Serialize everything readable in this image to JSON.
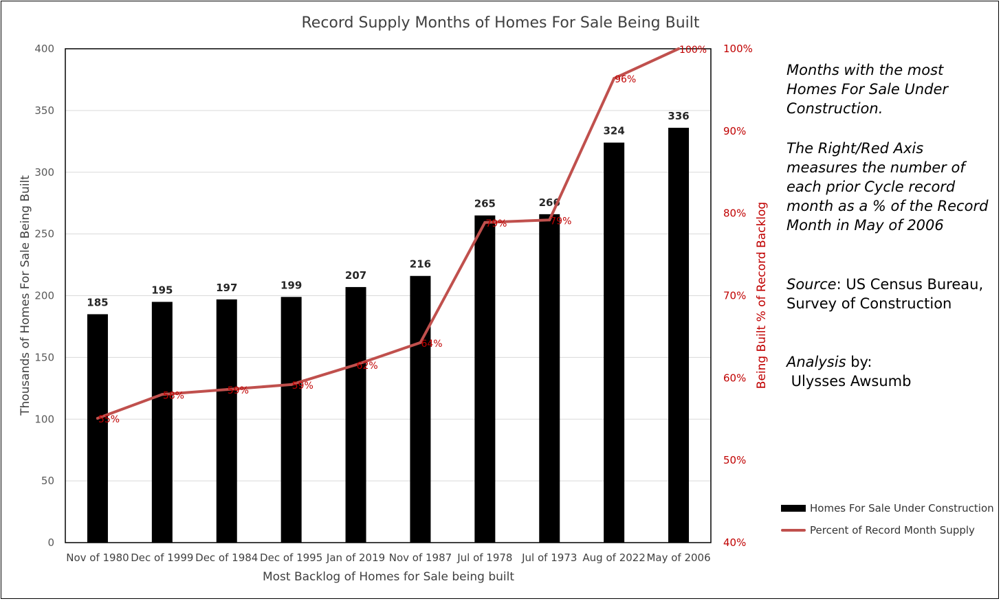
{
  "chart_data": {
    "type": "bar",
    "title": "Record Supply Months of Homes For Sale Being Built",
    "xlabel": "Most Backlog of Homes for Sale being built",
    "ylabel": "Thousands of Homes For Sale Being Built",
    "y2label": "Being Built %  of Record Backlog",
    "categories": [
      "Nov of 1980",
      "Dec of 1999",
      "Dec of 1984",
      "Dec of 1995",
      "Jan of 2019",
      "Nov of 1987",
      "Jul of 1978",
      "Jul of 1973",
      "Aug of 2022",
      "May of 2006"
    ],
    "series": [
      {
        "name": "Homes For Sale Under Construction",
        "type": "bar",
        "axis": "left",
        "color": "#000000",
        "values": [
          185,
          195,
          197,
          199,
          207,
          216,
          265,
          266,
          324,
          336
        ],
        "labels": [
          "185",
          "195",
          "197",
          "199",
          "207",
          "216",
          "265",
          "266",
          "324",
          "336"
        ]
      },
      {
        "name": "Percent of Record Month Supply",
        "type": "line",
        "axis": "right",
        "color": "#c0504d",
        "values": [
          55,
          58,
          59,
          59,
          62,
          64,
          79,
          79,
          96,
          100
        ],
        "plot_values": [
          55.1,
          58.0,
          58.6,
          59.2,
          61.6,
          64.3,
          78.9,
          79.2,
          96.4,
          100.0
        ],
        "labels": [
          "55%",
          "58%",
          "59%",
          "59%",
          "62%",
          "64%",
          "79%",
          "79%",
          "96%",
          "100%"
        ]
      }
    ],
    "ylim": [
      0,
      400
    ],
    "yticks": [
      "0",
      "50",
      "100",
      "150",
      "200",
      "250",
      "300",
      "350",
      "400"
    ],
    "y2lim": [
      40,
      100
    ],
    "y2ticks": [
      "40%",
      "50%",
      "60%",
      "70%",
      "80%",
      "90%",
      "100%"
    ],
    "grid": true,
    "legend_position": "bottom-right"
  },
  "annotation": {
    "p1": "Months with the most Homes For Sale Under Construction.",
    "p2": "The Right/Red Axis measures the number of each prior Cycle record month as a % of the Record Month in May of 2006",
    "p3_label": "Source",
    "p3_text": ": US Census Bureau, Survey of Construction",
    "p4_label": "Analysis",
    "p4_text": " by:",
    "p4_name": " Ulysses Awsumb"
  }
}
